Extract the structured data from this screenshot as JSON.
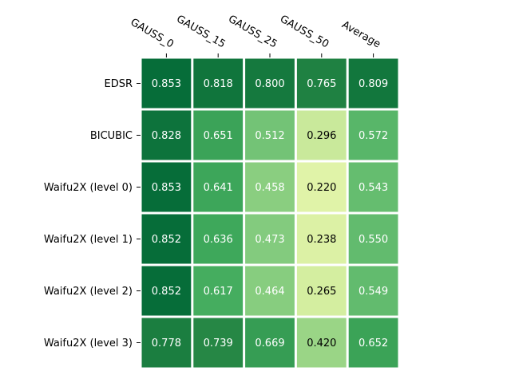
{
  "chart_data": {
    "type": "heatmap",
    "title": "",
    "xlabel": "",
    "ylabel": "",
    "colormap": "YlGn",
    "value_range": [
      0,
      1
    ],
    "x_labels": [
      "GAUSS_0",
      "GAUSS_15",
      "GAUSS_25",
      "GAUSS_50",
      "Average"
    ],
    "y_labels": [
      "EDSR",
      "BICUBIC",
      "Waifu2X (level 0)",
      "Waifu2X (level 1)",
      "Waifu2X (level 2)",
      "Waifu2X (level 3)"
    ],
    "values": [
      [
        0.853,
        0.818,
        0.8,
        0.765,
        0.809
      ],
      [
        0.828,
        0.651,
        0.512,
        0.296,
        0.572
      ],
      [
        0.853,
        0.641,
        0.458,
        0.22,
        0.543
      ],
      [
        0.852,
        0.636,
        0.473,
        0.238,
        0.55
      ],
      [
        0.852,
        0.617,
        0.464,
        0.265,
        0.549
      ],
      [
        0.778,
        0.739,
        0.669,
        0.42,
        0.652
      ]
    ],
    "cell_labels": [
      [
        "0.853",
        "0.818",
        "0.800",
        "0.765",
        "0.809"
      ],
      [
        "0.828",
        "0.651",
        "0.512",
        "0.296",
        "0.572"
      ],
      [
        "0.853",
        "0.641",
        "0.458",
        "0.220",
        "0.543"
      ],
      [
        "0.852",
        "0.636",
        "0.473",
        "0.238",
        "0.550"
      ],
      [
        "0.852",
        "0.617",
        "0.464",
        "0.265",
        "0.549"
      ],
      [
        "0.778",
        "0.739",
        "0.669",
        "0.420",
        "0.652"
      ]
    ],
    "grid": false,
    "x_tick_position": "top"
  }
}
